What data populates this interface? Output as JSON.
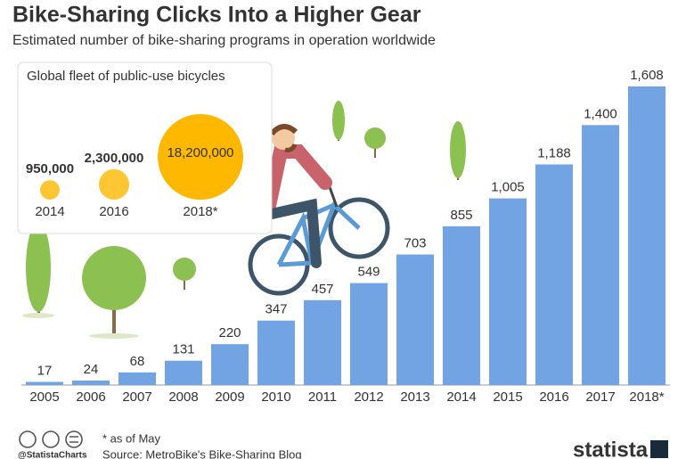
{
  "header": {
    "title": "Bike-Sharing Clicks Into a Higher Gear",
    "subtitle": "Estimated number of bike-sharing programs in operation worldwide"
  },
  "chart_data": [
    {
      "type": "bar",
      "categories": [
        "2005",
        "2006",
        "2007",
        "2008",
        "2009",
        "2010",
        "2011",
        "2012",
        "2013",
        "2014",
        "2015",
        "2016",
        "2017",
        "2018*"
      ],
      "values": [
        17,
        24,
        68,
        131,
        220,
        347,
        457,
        549,
        703,
        855,
        1005,
        1188,
        1400,
        1608
      ],
      "value_labels": [
        "17",
        "24",
        "68",
        "131",
        "220",
        "347",
        "457",
        "549",
        "703",
        "855",
        "1,005",
        "1,188",
        "1,400",
        "1,608"
      ],
      "color": "#72a3e3"
    },
    {
      "type": "bubble",
      "title": "Global fleet of public-use bicycles",
      "categories": [
        "2014",
        "2016",
        "2018*"
      ],
      "values": [
        950000,
        2300000,
        18200000
      ],
      "value_labels": [
        "950,000",
        "2,300,000",
        "18,200,000"
      ],
      "color": "#ffb800"
    }
  ],
  "footer": {
    "note": "* as of May",
    "handle": "@StatistaCharts",
    "source": "Source: MetroBike's Bike-Sharing Blog",
    "brand": "statista"
  }
}
